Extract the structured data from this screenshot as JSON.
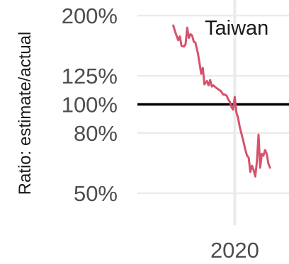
{
  "chart_data": {
    "type": "line",
    "title": "",
    "xlabel": "",
    "ylabel": "Ratio: estimate/actual",
    "y_scale": "log",
    "ylim": [
      0.44,
      2.05
    ],
    "xlim": [
      2018.0,
      2020.8
    ],
    "y_ticks": [
      {
        "value": 2.0,
        "label": "200%"
      },
      {
        "value": 1.25,
        "label": "125%"
      },
      {
        "value": 1.0,
        "label": "100%"
      },
      {
        "value": 0.8,
        "label": "80%"
      },
      {
        "value": 0.5,
        "label": "50%"
      }
    ],
    "x_ticks": [
      {
        "value": 2020,
        "label": "2020"
      }
    ],
    "reference_line": {
      "value": 1.0,
      "color": "#000000"
    },
    "grid": true,
    "series": [
      {
        "name": "Taiwan",
        "color": "#D6536D",
        "points": [
          [
            2019.25,
            1.85
          ],
          [
            2019.28,
            1.74
          ],
          [
            2019.31,
            1.65
          ],
          [
            2019.33,
            1.7
          ],
          [
            2019.35,
            1.58
          ],
          [
            2019.38,
            1.57
          ],
          [
            2019.4,
            1.6
          ],
          [
            2019.42,
            1.82
          ],
          [
            2019.44,
            1.68
          ],
          [
            2019.46,
            1.73
          ],
          [
            2019.48,
            1.71
          ],
          [
            2019.5,
            1.63
          ],
          [
            2019.52,
            1.62
          ],
          [
            2019.55,
            1.49
          ],
          [
            2019.57,
            1.38
          ],
          [
            2019.59,
            1.27
          ],
          [
            2019.61,
            1.33
          ],
          [
            2019.63,
            1.17
          ],
          [
            2019.66,
            1.2
          ],
          [
            2019.68,
            1.16
          ],
          [
            2019.7,
            1.21
          ],
          [
            2019.72,
            1.15
          ],
          [
            2019.74,
            1.16
          ],
          [
            2019.77,
            1.14
          ],
          [
            2019.79,
            1.13
          ],
          [
            2019.81,
            1.12
          ],
          [
            2019.83,
            1.11
          ],
          [
            2019.86,
            1.08
          ],
          [
            2019.88,
            1.08
          ],
          [
            2019.9,
            1.07
          ],
          [
            2019.92,
            1.04
          ],
          [
            2019.94,
            1.02
          ],
          [
            2019.96,
            0.98
          ],
          [
            2019.98,
            0.96
          ],
          [
            2020.0,
            1.06
          ],
          [
            2020.02,
            0.94
          ],
          [
            2020.04,
            0.9
          ],
          [
            2020.06,
            0.84
          ],
          [
            2020.09,
            0.78
          ],
          [
            2020.11,
            0.74
          ],
          [
            2020.13,
            0.7
          ],
          [
            2020.15,
            0.67
          ],
          [
            2020.17,
            0.66
          ],
          [
            2020.19,
            0.59
          ],
          [
            2020.21,
            0.62
          ],
          [
            2020.23,
            0.6
          ],
          [
            2020.25,
            0.57
          ],
          [
            2020.27,
            0.64
          ],
          [
            2020.29,
            0.79
          ],
          [
            2020.31,
            0.61
          ],
          [
            2020.33,
            0.68
          ],
          [
            2020.35,
            0.67
          ],
          [
            2020.37,
            0.7
          ],
          [
            2020.39,
            0.68
          ],
          [
            2020.41,
            0.63
          ],
          [
            2020.43,
            0.61
          ]
        ]
      }
    ]
  }
}
